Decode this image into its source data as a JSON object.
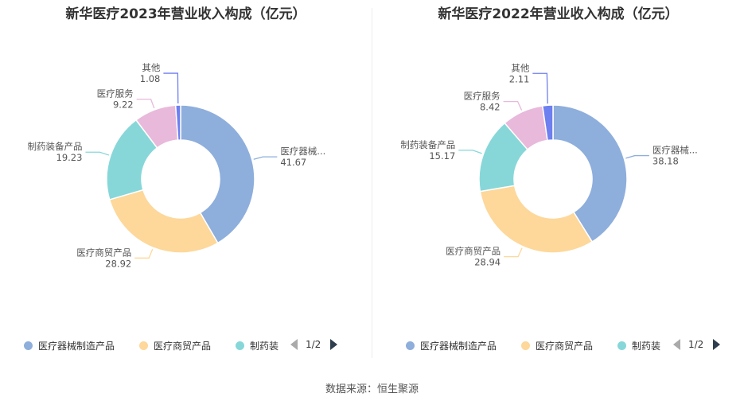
{
  "source": "数据来源：恒生聚源",
  "chart_data": [
    {
      "type": "pie",
      "title": "新华医疗2023年营业收入构成（亿元）",
      "categories": [
        "医疗器械制造产品",
        "医疗商贸产品",
        "制药装备产品",
        "医疗服务",
        "其他"
      ],
      "slice_labels": [
        "医疗器械...",
        "医疗商贸产品",
        "制药装备产品",
        "医疗服务",
        "其他"
      ],
      "values": [
        41.67,
        28.92,
        19.23,
        9.22,
        1.08
      ],
      "value_labels": [
        "41.67",
        "28.92",
        "19.23",
        "9.22",
        "1.08"
      ],
      "colors": [
        "#8eaedc",
        "#fdd89a",
        "#87d7d9",
        "#e8b9da",
        "#6e7ff0"
      ],
      "legend": {
        "placement": "bottom",
        "items": [
          "医疗器械制造产品",
          "医疗商贸产品",
          "制药装"
        ],
        "page": "1/2"
      }
    },
    {
      "type": "pie",
      "title": "新华医疗2022年营业收入构成（亿元）",
      "categories": [
        "医疗器械制造产品",
        "医疗商贸产品",
        "制药装备产品",
        "医疗服务",
        "其他"
      ],
      "slice_labels": [
        "医疗器械...",
        "医疗商贸产品",
        "制药装备产品",
        "医疗服务",
        "其他"
      ],
      "values": [
        38.18,
        28.94,
        15.17,
        8.42,
        2.11
      ],
      "value_labels": [
        "38.18",
        "28.94",
        "15.17",
        "8.42",
        "2.11"
      ],
      "colors": [
        "#8eaedc",
        "#fdd89a",
        "#87d7d9",
        "#e8b9da",
        "#6e7ff0"
      ],
      "legend": {
        "placement": "bottom",
        "items": [
          "医疗器械制造产品",
          "医疗商贸产品",
          "制药装"
        ],
        "page": "1/2"
      }
    }
  ]
}
